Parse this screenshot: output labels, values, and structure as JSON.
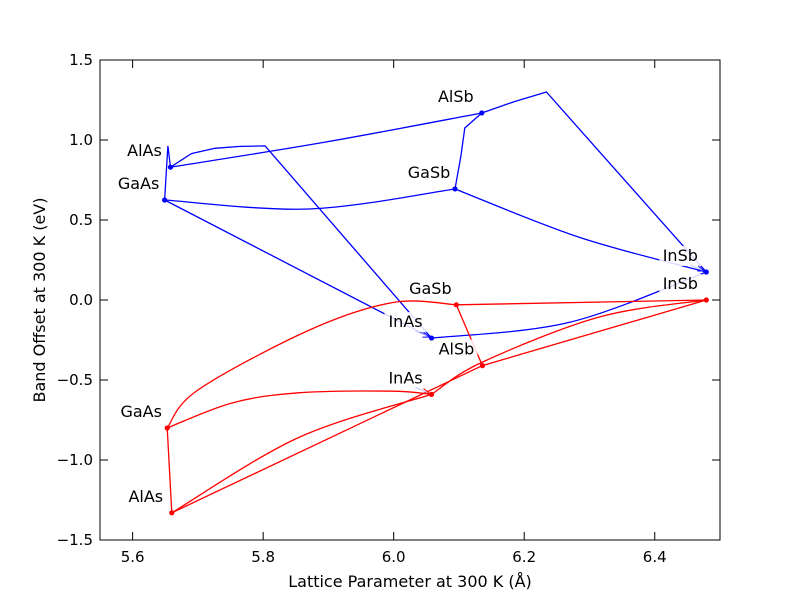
{
  "chart_data": {
    "type": "line",
    "title": "",
    "xlabel": "Lattice Parameter at 300 K (Å)",
    "ylabel": "Band Offset at 300 K (eV)",
    "xlim": [
      5.55,
      6.5
    ],
    "ylim": [
      -1.5,
      1.5
    ],
    "xticks": [
      5.6,
      5.8,
      6.0,
      6.2,
      6.4
    ],
    "xtick_labels": [
      "5.6",
      "5.8",
      "6.0",
      "6.2",
      "6.4"
    ],
    "yticks": [
      -1.5,
      -1.0,
      -0.5,
      0.0,
      0.5,
      1.0,
      1.5
    ],
    "ytick_labels": [
      "−1.5",
      "−1.0",
      "−0.5",
      "0.0",
      "0.5",
      "1.0",
      "1.5"
    ],
    "grid": false,
    "series": [
      {
        "color": "#0000ff",
        "points": [
          {
            "label": "AlAs",
            "x": 5.658,
            "y": 0.83
          },
          {
            "label": "GaAs",
            "x": 5.649,
            "y": 0.625
          },
          {
            "label": "GaSb",
            "x": 6.094,
            "y": 0.694
          },
          {
            "label": "AlSb",
            "x": 6.135,
            "y": 1.169
          },
          {
            "label": "InSb",
            "x": 6.479,
            "y": 0.175,
            "arrow": true
          },
          {
            "label": "InAs",
            "x": 6.058,
            "y": -0.238,
            "arrow": true
          }
        ],
        "curves": [
          {
            "smooth": false,
            "xy": [
              [
                5.658,
                0.83
              ],
              [
                5.654,
                0.963
              ],
              [
                5.649,
                0.625
              ]
            ]
          },
          {
            "smooth": true,
            "xy": [
              [
                5.658,
                0.83
              ],
              [
                5.897,
                0.988
              ],
              [
                6.135,
                1.169
              ]
            ]
          },
          {
            "smooth": false,
            "xy": [
              [
                5.658,
                0.83
              ],
              [
                5.69,
                0.915
              ],
              [
                5.726,
                0.948
              ],
              [
                5.765,
                0.96
              ],
              [
                5.803,
                0.963
              ],
              [
                6.058,
                -0.238
              ]
            ]
          },
          {
            "smooth": true,
            "xy": [
              [
                5.649,
                0.625
              ],
              [
                5.871,
                0.569
              ],
              [
                6.094,
                0.694
              ]
            ]
          },
          {
            "smooth": false,
            "xy": [
              [
                5.649,
                0.625
              ],
              [
                6.058,
                -0.238
              ]
            ]
          },
          {
            "smooth": false,
            "xy": [
              [
                6.094,
                0.694
              ],
              [
                6.103,
                0.9
              ],
              [
                6.109,
                1.075
              ],
              [
                6.135,
                1.169
              ]
            ]
          },
          {
            "smooth": false,
            "xy": [
              [
                6.135,
                1.169
              ],
              [
                6.185,
                1.24
              ],
              [
                6.234,
                1.3
              ],
              [
                6.479,
                0.175
              ]
            ]
          },
          {
            "smooth": true,
            "xy": [
              [
                6.094,
                0.694
              ],
              [
                6.286,
                0.39
              ],
              [
                6.479,
                0.175
              ]
            ]
          },
          {
            "smooth": true,
            "xy": [
              [
                6.058,
                -0.238
              ],
              [
                6.269,
                -0.14
              ],
              [
                6.479,
                0.175
              ]
            ]
          }
        ]
      },
      {
        "color": "#ff0000",
        "points": [
          {
            "label": "GaAs",
            "x": 5.653,
            "y": -0.8
          },
          {
            "label": "AlAs",
            "x": 5.66,
            "y": -1.33
          },
          {
            "label": "GaSb",
            "x": 6.096,
            "y": -0.03
          },
          {
            "label": "AlSb",
            "x": 6.136,
            "y": -0.41
          },
          {
            "label": "InAs",
            "x": 6.058,
            "y": -0.59,
            "arrow": true
          },
          {
            "label": "InSb",
            "x": 6.479,
            "y": 0.0
          }
        ],
        "curves": [
          {
            "smooth": false,
            "xy": [
              [
                5.653,
                -0.8
              ],
              [
                5.66,
                -1.33
              ]
            ]
          },
          {
            "smooth": true,
            "xy": [
              [
                5.653,
                -0.8
              ],
              [
                5.7,
                -0.5625
              ],
              [
                5.871,
                -0.1875
              ],
              [
                6.0,
                -0.015
              ],
              [
                6.096,
                -0.03
              ]
            ]
          },
          {
            "smooth": true,
            "xy": [
              [
                5.653,
                -0.8
              ],
              [
                5.751,
                -0.645
              ],
              [
                5.854,
                -0.58
              ],
              [
                6.0,
                -0.57
              ],
              [
                6.058,
                -0.59
              ]
            ]
          },
          {
            "smooth": true,
            "xy": [
              [
                5.66,
                -1.33
              ],
              [
                5.854,
                -0.86
              ],
              [
                6.058,
                -0.59
              ]
            ]
          },
          {
            "smooth": false,
            "xy": [
              [
                5.66,
                -1.33
              ],
              [
                6.136,
                -0.41
              ]
            ]
          },
          {
            "smooth": false,
            "xy": [
              [
                6.096,
                -0.03
              ],
              [
                6.136,
                -0.41
              ]
            ]
          },
          {
            "smooth": false,
            "xy": [
              [
                6.096,
                -0.03
              ],
              [
                6.479,
                0.0
              ]
            ]
          },
          {
            "smooth": false,
            "xy": [
              [
                6.136,
                -0.41
              ],
              [
                6.479,
                0.0
              ]
            ]
          },
          {
            "smooth": true,
            "xy": [
              [
                6.058,
                -0.59
              ],
              [
                6.135,
                -0.39
              ],
              [
                6.315,
                -0.106
              ],
              [
                6.479,
                0.0
              ]
            ]
          }
        ]
      }
    ]
  }
}
